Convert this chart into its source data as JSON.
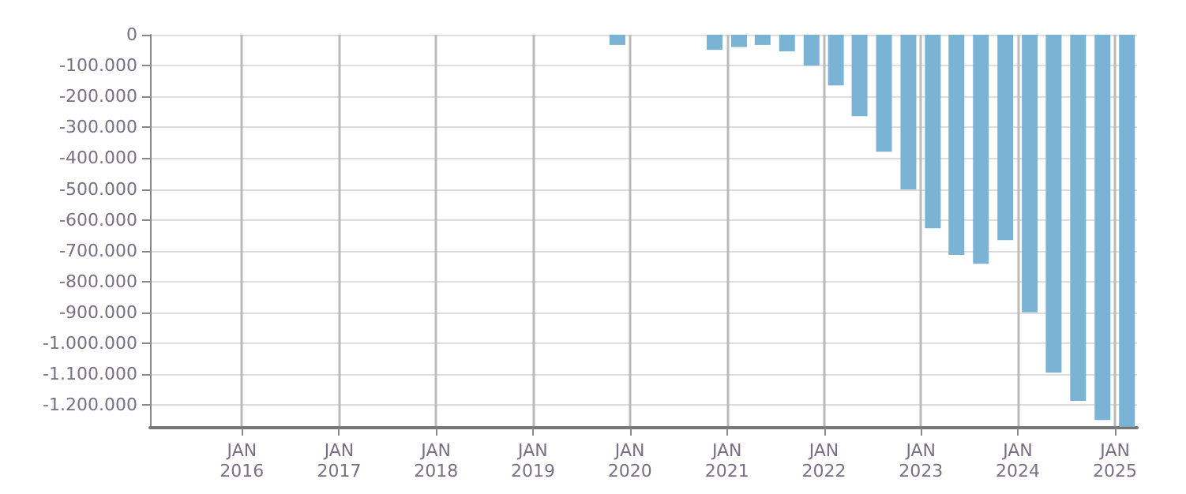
{
  "chart_data": {
    "type": "bar",
    "x": [
      "2019-11-15",
      "2020-11-15",
      "2021-02-15",
      "2021-05-15",
      "2021-08-15",
      "2021-11-15",
      "2022-02-15",
      "2022-05-15",
      "2022-08-15",
      "2022-11-15",
      "2023-02-15",
      "2023-05-15",
      "2023-08-15",
      "2023-11-15",
      "2024-02-15",
      "2024-05-15",
      "2024-08-15",
      "2024-11-15",
      "2025-02-15"
    ],
    "values": [
      -33000,
      -49000,
      -40000,
      -33000,
      -54000,
      -100000,
      -164000,
      -264000,
      -379000,
      -501000,
      -627000,
      -713000,
      -742000,
      -665000,
      -899000,
      -1095000,
      -1186000,
      -1248000,
      -1270000
    ],
    "color": "#7ab3d4",
    "xlim": [
      "2015-01-20",
      "2025-03-25"
    ],
    "xticks": [
      {
        "value": "2016-01-01",
        "label": "JAN\n2016"
      },
      {
        "value": "2017-01-01",
        "label": "JAN\n2017"
      },
      {
        "value": "2018-01-01",
        "label": "JAN\n2018"
      },
      {
        "value": "2019-01-01",
        "label": "JAN\n2019"
      },
      {
        "value": "2020-01-01",
        "label": "JAN\n2020"
      },
      {
        "value": "2021-01-01",
        "label": "JAN\n2021"
      },
      {
        "value": "2022-01-01",
        "label": "JAN\n2022"
      },
      {
        "value": "2023-01-01",
        "label": "JAN\n2023"
      },
      {
        "value": "2024-01-01",
        "label": "JAN\n2024"
      },
      {
        "value": "2025-01-01",
        "label": "JAN\n2025"
      }
    ],
    "ylim": [
      -1273000,
      0
    ],
    "yticks": [
      0,
      {
        "value": -100000,
        "label": "-100.000"
      },
      {
        "value": -200000,
        "label": "-200.000"
      },
      {
        "value": -300000,
        "label": "-300.000"
      },
      {
        "value": -400000,
        "label": "-400.000"
      },
      {
        "value": -500000,
        "label": "-500.000"
      },
      {
        "value": -600000,
        "label": "-600.000"
      },
      {
        "value": -700000,
        "label": "-700.000"
      },
      {
        "value": -800000,
        "label": "-800.000"
      },
      {
        "value": -900000,
        "label": "-900.000"
      },
      {
        "value": -1000000,
        "label": "-1.000.000"
      },
      {
        "value": -1100000,
        "label": "-1.100.000"
      },
      {
        "value": -1200000,
        "label": "-1.200.000"
      }
    ],
    "grid": true
  }
}
